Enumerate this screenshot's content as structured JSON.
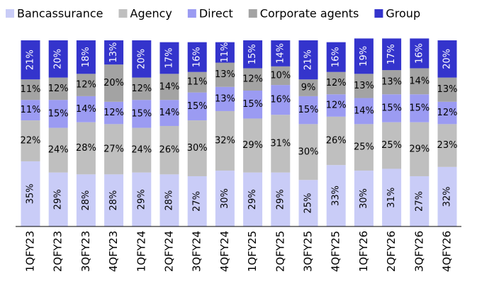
{
  "chart_data": {
    "type": "stacked_bar",
    "categories": [
      "1QFY23",
      "2QFY23",
      "3QFY23",
      "4QFY23",
      "1QFY24",
      "2QFY24",
      "3QFY24",
      "4QFY24",
      "1QFY25",
      "2QFY25",
      "3QFY25",
      "4QFY25",
      "1QFY26",
      "2QFY26",
      "3QFY26",
      "4QFY26"
    ],
    "ylim": [
      0,
      100
    ],
    "legend": "top",
    "series": [
      {
        "name": "Bancassurance",
        "color": "#c9ccf7",
        "values": [
          35,
          29,
          28,
          28,
          29,
          28,
          27,
          30,
          29,
          29,
          25,
          33,
          30,
          31,
          27,
          32
        ],
        "value_labels": [
          "35%",
          "29%",
          "28%",
          "28%",
          "29%",
          "28%",
          "27%",
          "30%",
          "29%",
          "29%",
          "25%",
          "33%",
          "30%",
          "31%",
          "27%",
          "32%"
        ]
      },
      {
        "name": "Agency",
        "color": "#bfbfbf",
        "values": [
          22,
          24,
          28,
          27,
          24,
          26,
          30,
          32,
          29,
          31,
          30,
          26,
          25,
          25,
          29,
          23
        ],
        "value_labels": [
          "22%",
          "24%",
          "28%",
          "27%",
          "24%",
          "26%",
          "30%",
          "32%",
          "29%",
          "31%",
          "30%",
          "26%",
          "25%",
          "25%",
          "29%",
          "23%"
        ]
      },
      {
        "name": "Direct",
        "color": "#9b9bf2",
        "values": [
          11,
          15,
          14,
          12,
          15,
          14,
          15,
          13,
          15,
          16,
          15,
          12,
          14,
          15,
          15,
          12
        ],
        "value_labels": [
          "11%",
          "15%",
          "14%",
          "12%",
          "15%",
          "14%",
          "15%",
          "13%",
          "15%",
          "16%",
          "15%",
          "12%",
          "14%",
          "15%",
          "15%",
          "12%"
        ]
      },
      {
        "name": "Corporate agents",
        "color": "#a3a3a3",
        "values": [
          11,
          12,
          12,
          20,
          12,
          14,
          11,
          13,
          12,
          10,
          9,
          12,
          13,
          13,
          14,
          13
        ],
        "value_labels": [
          "11%",
          "12%",
          "12%",
          "20%",
          "12%",
          "14%",
          "11%",
          "13%",
          "12%",
          "10%",
          "9%",
          "12%",
          "13%",
          "13%",
          "14%",
          "13%"
        ]
      },
      {
        "name": "Group",
        "color": "#3434cc",
        "values": [
          21,
          20,
          18,
          13,
          20,
          17,
          16,
          11,
          15,
          14,
          21,
          16,
          19,
          17,
          16,
          20
        ],
        "value_labels": [
          "21%",
          "20%",
          "18%",
          "13%",
          "20%",
          "17%",
          "16%",
          "11%",
          "15%",
          "14%",
          "21%",
          "16%",
          "19%",
          "17%",
          "16%",
          "20%"
        ]
      }
    ]
  }
}
